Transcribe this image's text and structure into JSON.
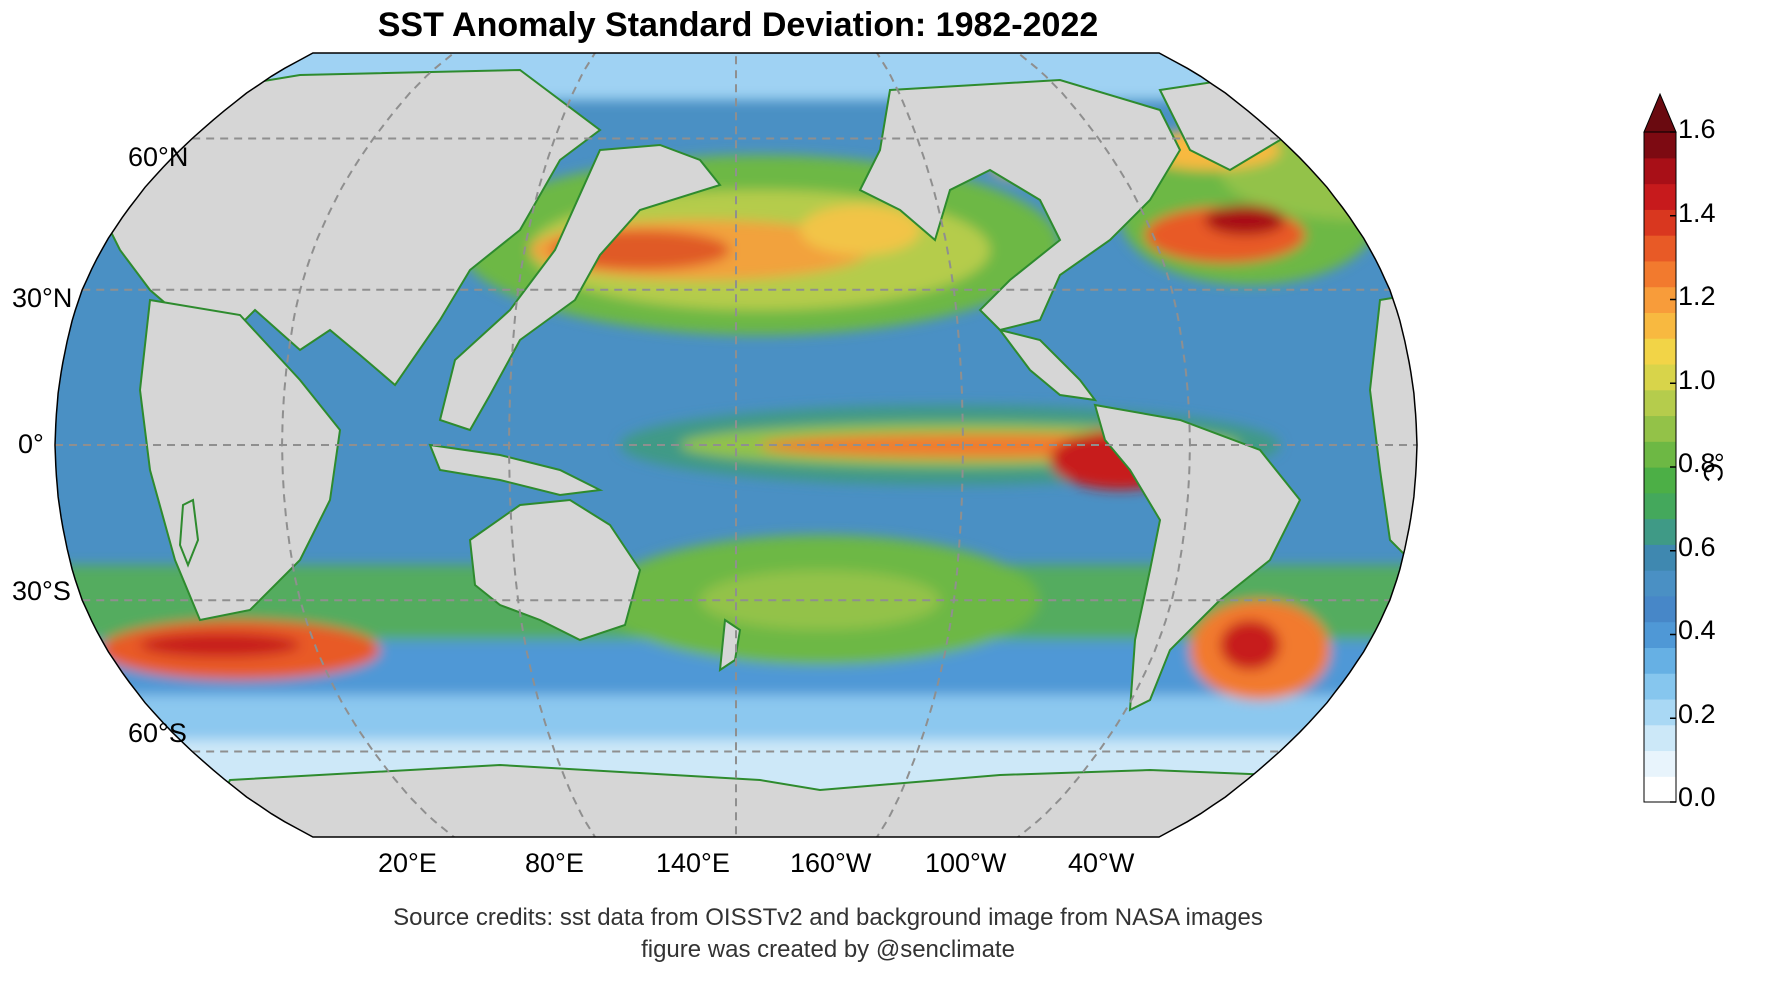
{
  "title": "SST Anomaly Standard Deviation: 1982-2022",
  "latitude_labels": [
    {
      "text": "60°N"
    },
    {
      "text": "30°N"
    },
    {
      "text": "0°"
    },
    {
      "text": "30°S"
    },
    {
      "text": "60°S"
    }
  ],
  "longitude_labels": [
    {
      "text": "20°E"
    },
    {
      "text": "80°E"
    },
    {
      "text": "140°E"
    },
    {
      "text": "160°W"
    },
    {
      "text": "100°W"
    },
    {
      "text": "40°W"
    }
  ],
  "colorbar": {
    "unit": "°C",
    "min": 0.0,
    "max": 1.6,
    "extend": "max",
    "ticks": [
      "1.6",
      "1.4",
      "1.2",
      "1.0",
      "0.8",
      "0.6",
      "0.4",
      "0.2",
      "0.0"
    ],
    "colors": [
      "#ffffff",
      "#e8f4fc",
      "#cce8f8",
      "#a9d8f4",
      "#86c6ee",
      "#66b0e4",
      "#4f98d6",
      "#4787c8",
      "#4a90c4",
      "#3f88b0",
      "#3f9a86",
      "#44a85c",
      "#4caf46",
      "#6db844",
      "#93c248",
      "#b5cc4c",
      "#d8d44a",
      "#f2d447",
      "#f8b940",
      "#f89c3a",
      "#f27a2e",
      "#e85a26",
      "#d9371f",
      "#c71a1c",
      "#a80f17",
      "#7d0a12"
    ],
    "extend_color": "#6a0a10"
  },
  "map_colors": {
    "land": "#d6d6d6",
    "coastline": "#2e8b2e",
    "grid": "#8f8f8f",
    "ocean_base": "#4a90c4"
  },
  "credits": [
    "Source credits: sst data from OISSTv2 and background image from NASA images",
    "figure was created by @senclimate"
  ]
}
